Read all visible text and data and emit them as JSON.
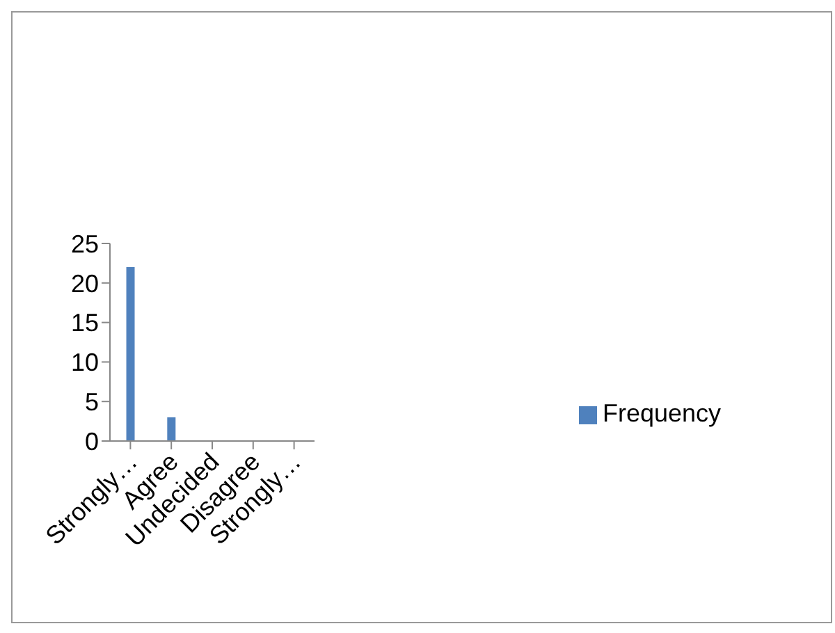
{
  "chart_data": {
    "type": "bar",
    "categories": [
      "Strongly…",
      "Agree",
      "Undecided",
      "Disagree",
      "Strongly…"
    ],
    "series": [
      {
        "name": "Frequency",
        "color": "#4f81bd",
        "values": [
          22,
          3,
          0,
          0,
          0
        ]
      }
    ],
    "ylim": [
      0,
      25
    ],
    "yticks": [
      0,
      5,
      10,
      15,
      20,
      25
    ],
    "grid": false,
    "legend": "right"
  }
}
